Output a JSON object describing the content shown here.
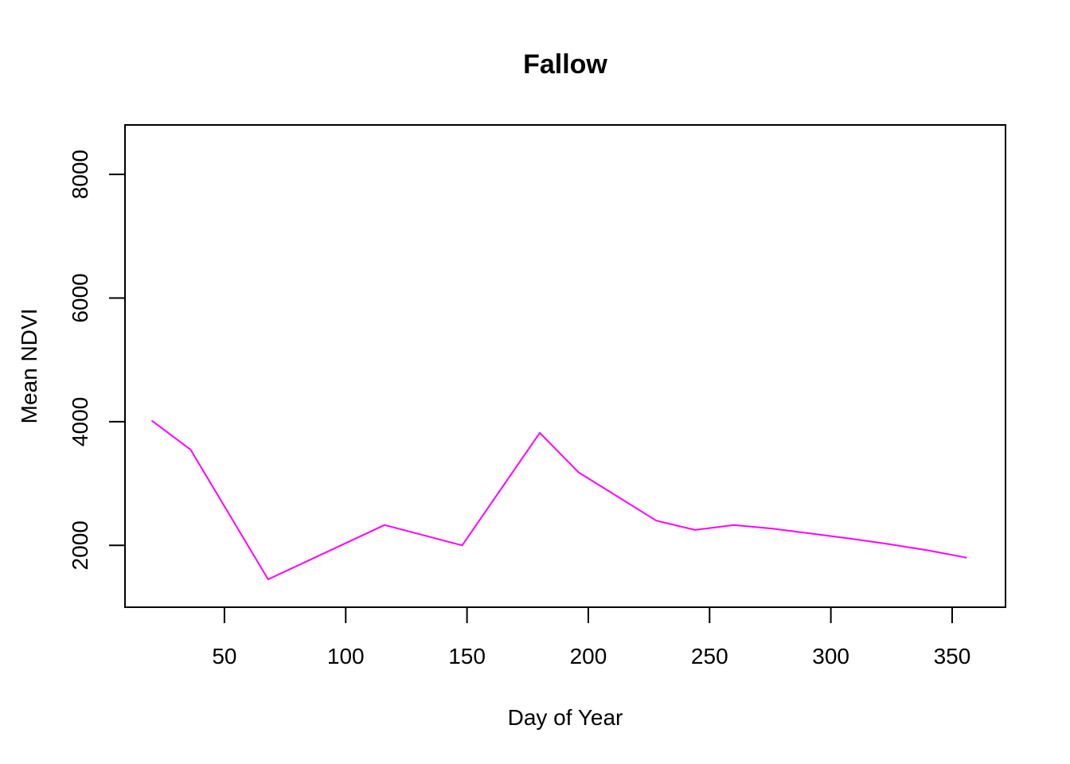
{
  "chart_data": {
    "type": "line",
    "title": "Fallow",
    "xlabel": "Day of Year",
    "ylabel": "Mean NDVI",
    "xlim": [
      9,
      372
    ],
    "ylim": [
      1000,
      8800
    ],
    "xticks": [
      50,
      100,
      150,
      200,
      250,
      300,
      350
    ],
    "yticks": [
      2000,
      4000,
      6000,
      8000
    ],
    "grid": false,
    "legend": "none",
    "series": [
      {
        "color": "#ff00ff",
        "x": [
          20,
          36,
          68,
          116,
          148,
          180,
          196,
          228,
          244,
          260,
          276,
          292,
          308,
          324,
          340,
          356
        ],
        "y": [
          4020,
          3550,
          1450,
          2330,
          2000,
          3820,
          3180,
          2400,
          2250,
          2330,
          2270,
          2190,
          2110,
          2020,
          1920,
          1800
        ]
      }
    ]
  }
}
